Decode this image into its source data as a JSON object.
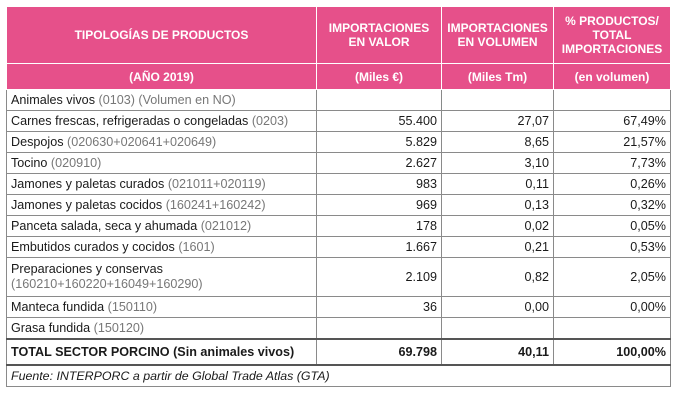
{
  "header": {
    "col1_title": "TIPOLOGÍAS DE PRODUCTOS",
    "col2_title": "IMPORTACIONES EN VALOR",
    "col3_title": "IMPORTACIONES EN VOLUMEN",
    "col4_title": "% PRODUCTOS/ TOTAL IMPORTACIONES",
    "col1_sub": "(AÑO 2019)",
    "col2_sub": "(Miles  €)",
    "col3_sub": "(Miles Tm)",
    "col4_sub": "(en volumen)"
  },
  "colors": {
    "header_bg": "#e6508a",
    "header_text": "#ffffff",
    "code_text": "#777777"
  },
  "rows": [
    {
      "name": "Animales vivos",
      "code": "(0103) (Volumen en NO)",
      "valor": "",
      "volumen": "",
      "pct": ""
    },
    {
      "name": "Carnes frescas, refrigeradas o congeladas",
      "code": "(0203)",
      "valor": "55.400",
      "volumen": "27,07",
      "pct": "67,49%"
    },
    {
      "name": "Despojos",
      "code": "(020630+020641+020649)",
      "valor": "5.829",
      "volumen": "8,65",
      "pct": "21,57%"
    },
    {
      "name": "Tocino",
      "code": "(020910)",
      "valor": "2.627",
      "volumen": "3,10",
      "pct": "7,73%"
    },
    {
      "name": "Jamones y paletas curados",
      "code": "(021011+020119)",
      "valor": "983",
      "volumen": "0,11",
      "pct": "0,26%"
    },
    {
      "name": "Jamones y paletas cocidos",
      "code": "(160241+160242)",
      "valor": "969",
      "volumen": "0,13",
      "pct": "0,32%"
    },
    {
      "name": "Panceta salada, seca y ahumada",
      "code": "(021012)",
      "valor": "178",
      "volumen": "0,02",
      "pct": "0,05%"
    },
    {
      "name": "Embutidos curados y cocidos",
      "code": "(1601)",
      "valor": "1.667",
      "volumen": "0,21",
      "pct": "0,53%"
    },
    {
      "name": "Preparaciones y conservas",
      "code": "(160210+160220+16049+160290)",
      "valor": "2.109",
      "volumen": "0,82",
      "pct": "2,05%"
    },
    {
      "name": "Manteca fundida",
      "code": "(150110)",
      "valor": "36",
      "volumen": "0,00",
      "pct": "0,00%"
    },
    {
      "name": "Grasa fundida",
      "code": "(150120)",
      "valor": "",
      "volumen": "",
      "pct": ""
    }
  ],
  "total": {
    "label": "TOTAL SECTOR PORCINO (Sin animales vivos)",
    "valor": "69.798",
    "volumen": "40,11",
    "pct": "100,00%"
  },
  "source": "Fuente: INTERPORC a partir de Global Trade Atlas (GTA)"
}
